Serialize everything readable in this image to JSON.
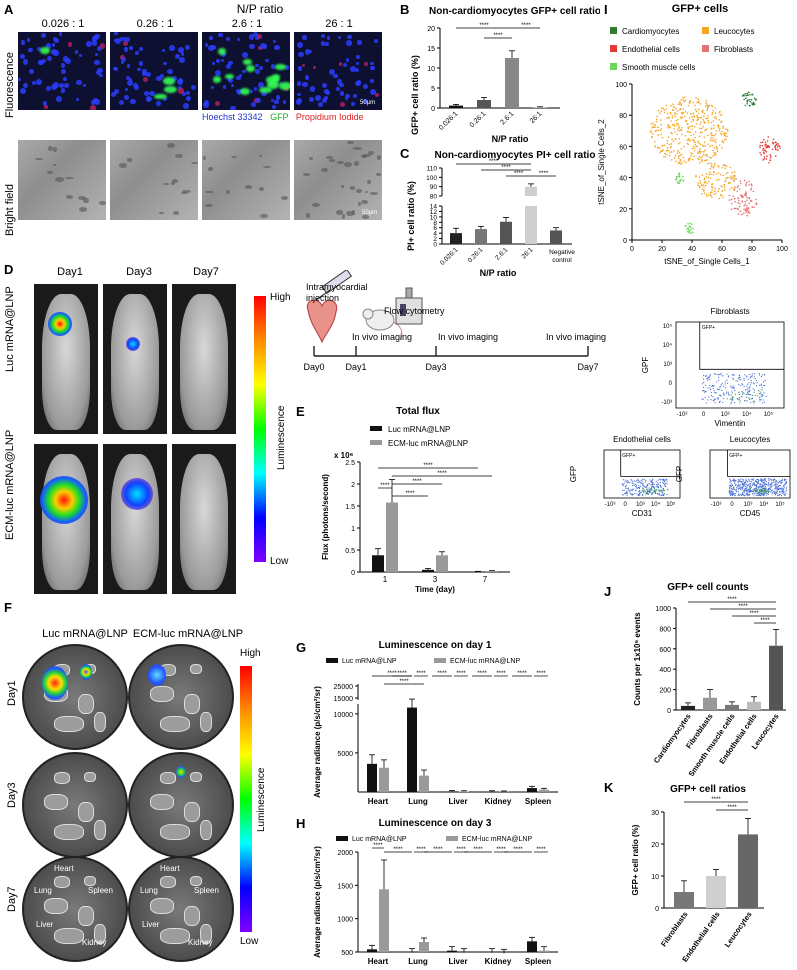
{
  "panels": {
    "A": {
      "letter": "A",
      "title": "N/P ratio",
      "ratios": [
        "0.026 : 1",
        "0.26 : 1",
        "2.6 : 1",
        "26 : 1"
      ],
      "row_fluor": "Fluorescence",
      "row_bf": "Bright field",
      "legend": [
        "Hoechst 33342",
        "GFP",
        "Propidium Iodide"
      ],
      "scale": "50μm"
    },
    "B": {
      "letter": "B",
      "title": "Non-cardiomyocytes GFP+ cell ratio",
      "ylabel": "GFP+ cell ratio (%)",
      "xlabel": "N/P ratio",
      "sig": "****"
    },
    "C": {
      "letter": "C",
      "title": "Non-cardiomyocytes PI+ cell ratio",
      "ylabel": "PI+ cell ratio (%)",
      "xlabel": "N/P ratio",
      "sig": "****"
    },
    "D": {
      "letter": "D",
      "days": [
        "Day1",
        "Day3",
        "Day7"
      ],
      "rows": [
        "Luc mRNA@LNP",
        "ECM-luc mRNA@LNP"
      ],
      "scale_high": "High",
      "scale_low": "Low",
      "scale_label": "Luminescence"
    },
    "timeline": {
      "injection": "Intramyocardial\ninjection",
      "flow": "Flow cytometry",
      "imaging": "In vivo imaging",
      "days": [
        "Day0",
        "Day1",
        "Day3",
        "Day7"
      ]
    },
    "E": {
      "letter": "E"
    },
    "F": {
      "letter": "F",
      "cols": [
        "Luc mRNA@LNP",
        "ECM-luc mRNA@LNP"
      ],
      "rows": [
        "Day1",
        "Day3",
        "Day7"
      ],
      "organs": [
        "Heart",
        "Lung",
        "Spleen",
        "Liver",
        "Kidney"
      ],
      "scale_high": "High",
      "scale_low": "Low",
      "scale_label": "Luminescence"
    },
    "G": {
      "letter": "G"
    },
    "H": {
      "letter": "H"
    },
    "I": {
      "letter": "I",
      "title": "GFP+ cells",
      "legend": [
        "Cardiomyocytes",
        "Leucocytes",
        "Endothelial cells",
        "Fibroblasts",
        "Smooth muscle cells"
      ],
      "xlabel": "tSNE_of_Single Cells_1",
      "ylabel": "tSNE_of_Single Cells_2"
    },
    "flow": {
      "plots": [
        {
          "title": "Fibroblasts",
          "y": "GPF",
          "x": "Vimentin",
          "gate": "GFP+"
        },
        {
          "title": "Endothelial cells",
          "y": "GFP",
          "x": "CD31",
          "gate": "GFP+"
        },
        {
          "title": "Leucocytes",
          "y": "GFP",
          "x": "CD45",
          "gate": "GFP+"
        }
      ]
    },
    "J": {
      "letter": "J"
    },
    "K": {
      "letter": "K"
    }
  },
  "chart_data": [
    {
      "id": "B",
      "type": "bar",
      "title": "Non-cardiomyocytes GFP+ cell ratio",
      "xlabel": "N/P ratio",
      "ylabel": "GFP+ cell ratio (%)",
      "categories": [
        "0.026:1",
        "0.26:1",
        "2.6:1",
        "26:1"
      ],
      "values": [
        0.6,
        2.0,
        12.5,
        0.2
      ],
      "errors": [
        0.3,
        0.6,
        1.8,
        0.1
      ],
      "ylim": [
        0,
        20
      ],
      "yticks": [
        0,
        5,
        10,
        15,
        20
      ],
      "colors": [
        "#111111",
        "#555555",
        "#888888",
        "#bbbbbb"
      ],
      "significance": "****"
    },
    {
      "id": "C",
      "type": "bar",
      "title": "Non-cardiomyocytes PI+ cell ratio",
      "xlabel": "N/P ratio",
      "ylabel": "PI+ cell ratio (%)",
      "categories": [
        "0.026:1",
        "0.26:1",
        "2.6:1",
        "26:1",
        "Negative control"
      ],
      "values": [
        4,
        5.5,
        8.2,
        90,
        5
      ],
      "errors": [
        1.8,
        1.0,
        1.6,
        3,
        1.0
      ],
      "yticks_low": [
        0,
        2,
        4,
        6,
        8,
        10,
        12,
        14
      ],
      "yticks_high": [
        80,
        90,
        100,
        110
      ],
      "colors": [
        "#222222",
        "#777777",
        "#555555",
        "#cfcfcf",
        "#555555"
      ],
      "significance": "****"
    },
    {
      "id": "E",
      "type": "bar",
      "title": "Total flux",
      "xlabel": "Time (day)",
      "ylabel": "Flux (photons/second)",
      "yunit": "x 10⁶",
      "categories": [
        "1",
        "3",
        "7"
      ],
      "series": [
        {
          "name": "Luc mRNA@LNP",
          "values": [
            0.38,
            0.05,
            0.01
          ],
          "errors": [
            0.15,
            0.03,
            0.005
          ]
        },
        {
          "name": "ECM-luc mRNA@LNP",
          "values": [
            1.58,
            0.38,
            0.02
          ],
          "errors": [
            0.52,
            0.08,
            0.01
          ]
        }
      ],
      "ylim": [
        0,
        2.5
      ],
      "yticks": [
        0,
        0.5,
        1,
        1.5,
        2,
        2.5
      ],
      "significance": "****"
    },
    {
      "id": "G",
      "type": "bar",
      "title": "Luminescence on day 1",
      "ylabel": "Average radiance (p/s/cm²/sr)",
      "categories": [
        "Heart",
        "Lung",
        "Liver",
        "Kidney",
        "Spleen"
      ],
      "series": [
        {
          "name": "Luc mRNA@LNP",
          "values": [
            3600,
            10800,
            80,
            60,
            500
          ]
        },
        {
          "name": "ECM-luc mRNA@LNP",
          "values": [
            3100,
            2100,
            60,
            40,
            300
          ]
        }
      ],
      "yticks": [
        "5000",
        "10000",
        "15000",
        "25000"
      ],
      "significance": "****"
    },
    {
      "id": "H",
      "type": "bar",
      "title": "Luminescence on day 3",
      "ylabel": "Average radiance (p/s/cm²/sr)",
      "categories": [
        "Heart",
        "Lung",
        "Liver",
        "Kidney",
        "Spleen"
      ],
      "series": [
        {
          "name": "Luc mRNA@LNP",
          "values": [
            540,
            490,
            520,
            490,
            660
          ]
        },
        {
          "name": "ECM-luc mRNA@LNP",
          "values": [
            1440,
            650,
            490,
            480,
            520
          ]
        }
      ],
      "ylim": [
        500,
        2000
      ],
      "yticks": [
        500,
        1000,
        1500,
        2000
      ],
      "significance": "****"
    },
    {
      "id": "I",
      "type": "scatter",
      "title": "GFP+ cells",
      "xlabel": "tSNE_of_Single Cells_1",
      "ylabel": "tSNE_of_Single Cells_2",
      "xlim": [
        0,
        100
      ],
      "ylim": [
        0,
        100
      ],
      "xticks": [
        0,
        20,
        40,
        60,
        80,
        100
      ],
      "yticks": [
        0,
        20,
        40,
        60,
        80,
        100
      ]
    },
    {
      "id": "J",
      "type": "bar",
      "title": "GFP+ cell counts",
      "ylabel": "Counts per 1x10⁶ events",
      "categories": [
        "Cardiomyocytes",
        "Fibroblasts",
        "Smooth muscle cells",
        "Endothelial cells",
        "Leucocytes"
      ],
      "values": [
        40,
        120,
        50,
        80,
        630
      ],
      "errors": [
        30,
        80,
        30,
        50,
        160
      ],
      "ylim": [
        0,
        1000
      ],
      "yticks": [
        0,
        200,
        400,
        600,
        800,
        1000
      ],
      "colors": [
        "#222222",
        "#999999",
        "#777777",
        "#bbbbbb",
        "#555555"
      ],
      "significance": "****"
    },
    {
      "id": "K",
      "type": "bar",
      "title": "GFP+ cell ratios",
      "ylabel": "GFP+ cell ratio (%)",
      "categories": [
        "Fibroblasts",
        "Endothelial cells",
        "Leucocytes"
      ],
      "values": [
        5,
        10,
        23
      ],
      "errors": [
        3.5,
        2,
        5
      ],
      "ylim": [
        0,
        30
      ],
      "yticks": [
        0,
        10,
        20,
        30
      ],
      "colors": [
        "#777777",
        "#cfcfcf",
        "#666666"
      ],
      "significance": "****"
    }
  ],
  "colors": {
    "cardio": "#2e7d32",
    "leuco": "#f5a623",
    "endo": "#e53935",
    "fibro": "#e57373",
    "smooth": "#6ad65a",
    "flowdot": "#4a6fd6"
  }
}
